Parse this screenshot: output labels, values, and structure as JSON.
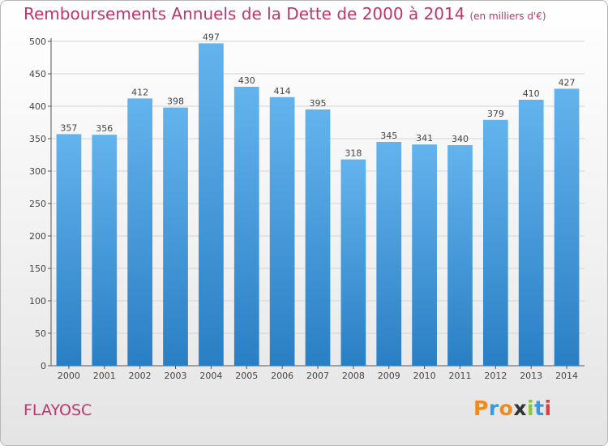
{
  "header": {
    "title": "Remboursements Annuels de la Dette de 2000 à 2014",
    "unit": "(en milliers d'€)"
  },
  "footer": {
    "city": "FLAYOSC",
    "logo": "Proxiti",
    "logo_colors": [
      "#f08a1c",
      "#3a9ad9",
      "#f08a1c",
      "#333333",
      "#8cc63f",
      "#3a9ad9",
      "#e23c3c"
    ]
  },
  "colors": {
    "bar_top": "#63b3ed",
    "bar_bottom": "#2a7fc4",
    "title": "#c0346e",
    "grid": "#d4d4d4"
  },
  "chart_data": {
    "type": "bar",
    "categories": [
      "2000",
      "2001",
      "2002",
      "2003",
      "2004",
      "2005",
      "2006",
      "2007",
      "2008",
      "2009",
      "2010",
      "2011",
      "2012",
      "2013",
      "2014"
    ],
    "values": [
      357,
      356,
      412,
      398,
      497,
      430,
      414,
      395,
      318,
      345,
      341,
      340,
      379,
      410,
      427
    ],
    "title": "Remboursements Annuels de la Dette de 2000 à 2014",
    "xlabel": "",
    "ylabel": "",
    "ylim": [
      0,
      500
    ],
    "yticks": [
      0,
      50,
      100,
      150,
      200,
      250,
      300,
      350,
      400,
      450,
      500
    ],
    "grid": true,
    "data_labels": true
  }
}
